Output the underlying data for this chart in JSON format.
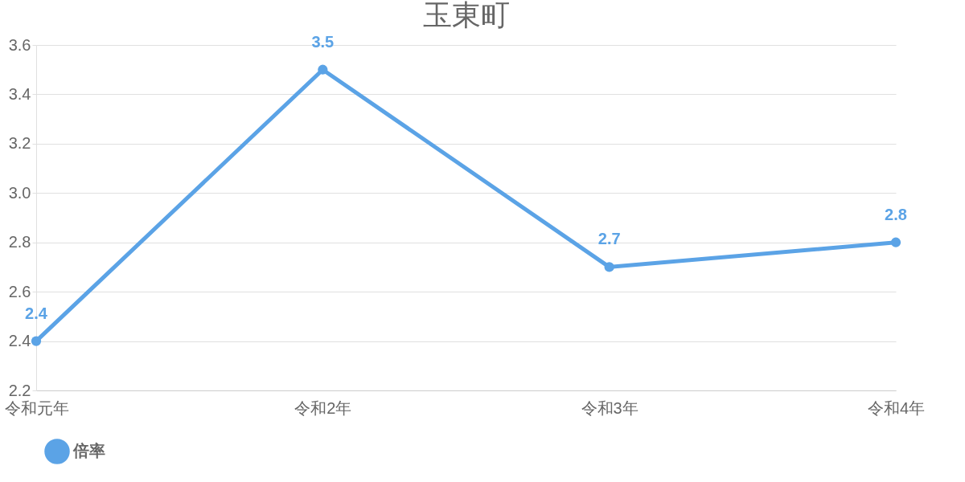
{
  "chart_data": {
    "type": "line",
    "title": "玉東町",
    "categories": [
      "令和元年",
      "令和2年",
      "令和3年",
      "令和4年"
    ],
    "series": [
      {
        "name": "倍率",
        "color": "#5ba3e6",
        "values": [
          2.4,
          3.5,
          2.7,
          2.8
        ]
      }
    ],
    "ylim": [
      2.2,
      3.6
    ],
    "yticks": [
      2.2,
      2.4,
      2.6,
      2.8,
      {
        "value": 3,
        "label": "3.0"
      },
      3.2,
      3.4,
      3.6
    ],
    "grid": "y",
    "legend": "bottom",
    "marker": "circle",
    "line_style": "solid",
    "data_labels": true
  }
}
